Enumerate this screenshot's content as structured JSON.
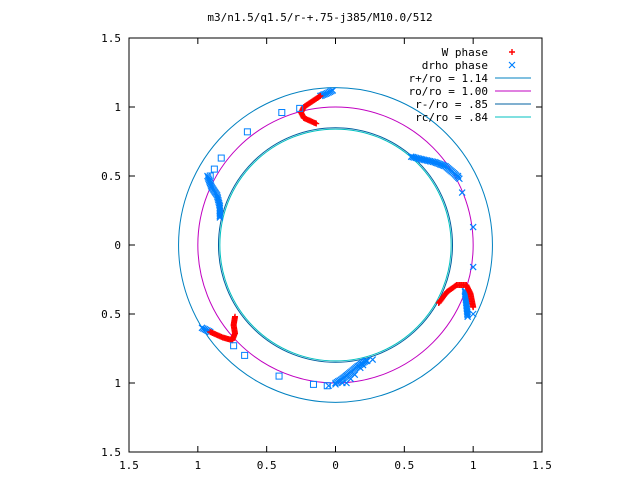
{
  "chart_data": {
    "type": "scatter",
    "title": "m3/n1.5/q1.5/r-+.75-j385/M10.0/512",
    "xlabel": "",
    "ylabel": "",
    "xlim": [
      -1.5,
      1.5
    ],
    "ylim": [
      -1.5,
      1.5
    ],
    "x_tick_labels": [
      "1.5",
      "1",
      "0.5",
      "0",
      "0.5",
      "1",
      "1.5"
    ],
    "y_tick_labels": [
      "1.5",
      "1",
      "0.5",
      "0",
      "0.5",
      "1",
      "1.5"
    ],
    "tick_values": [
      -1.5,
      -1.0,
      -0.5,
      0.0,
      0.5,
      1.0,
      1.5
    ],
    "grid": false,
    "legend_position": "top-right",
    "legend": [
      {
        "label": "W phase",
        "symbol": "+",
        "color": "#ff0000"
      },
      {
        "label": "drho phase",
        "symbol": "x",
        "color": "#0080ff"
      },
      {
        "label": "r+/ro = 1.14",
        "symbol": "line",
        "color": "#0080c0"
      },
      {
        "label": "ro/ro = 1.00",
        "symbol": "line",
        "color": "#c000c0"
      },
      {
        "label": "r-/ro = .85",
        "symbol": "line",
        "color": "#0060a0"
      },
      {
        "label": "rc/ro = .84",
        "symbol": "line",
        "color": "#00c0c0"
      }
    ],
    "circles": [
      {
        "name": "r+/ro = 1.14",
        "radius": 1.14,
        "color": "#0080c0"
      },
      {
        "name": "ro/ro = 1.00",
        "radius": 1.0,
        "color": "#c000c0"
      },
      {
        "name": "r-/ro = .85",
        "radius": 0.85,
        "color": "#0060a0"
      },
      {
        "name": "rc/ro = .84",
        "radius": 0.84,
        "color": "#00c0c0"
      }
    ],
    "series": [
      {
        "name": "W phase",
        "color": "#ff0000",
        "arms": [
          [
            [
              -0.14,
              0.88
            ],
            [
              -0.23,
              0.92
            ],
            [
              -0.25,
              0.96
            ],
            [
              -0.23,
              1.0
            ],
            [
              -0.17,
              1.04
            ],
            [
              -0.11,
              1.08
            ]
          ],
          [
            [
              0.75,
              -0.42
            ],
            [
              0.81,
              -0.34
            ],
            [
              0.88,
              -0.29
            ],
            [
              0.95,
              -0.29
            ],
            [
              0.98,
              -0.35
            ],
            [
              1.0,
              -0.45
            ]
          ],
          [
            [
              -0.73,
              -0.52
            ],
            [
              -0.74,
              -0.58
            ],
            [
              -0.73,
              -0.64
            ],
            [
              -0.75,
              -0.69
            ],
            [
              -0.82,
              -0.67
            ],
            [
              -0.91,
              -0.63
            ]
          ]
        ]
      },
      {
        "name": "drho phase",
        "color": "#0080ff",
        "arms": [
          [
            [
              -0.11,
              1.08
            ],
            [
              -0.06,
              1.1
            ],
            [
              -0.02,
              1.12
            ]
          ],
          [
            [
              0.55,
              0.64
            ],
            [
              0.63,
              0.62
            ],
            [
              0.72,
              0.6
            ],
            [
              0.8,
              0.57
            ],
            [
              0.86,
              0.52
            ],
            [
              0.9,
              0.48
            ]
          ],
          [
            [
              0.94,
              -0.33
            ],
            [
              0.95,
              -0.42
            ],
            [
              0.96,
              -0.52
            ]
          ],
          [
            [
              -0.91,
              -0.63
            ],
            [
              -0.97,
              -0.6
            ]
          ],
          [
            [
              0.0,
              -1.0
            ],
            [
              0.05,
              -0.97
            ],
            [
              0.1,
              -0.93
            ],
            [
              0.16,
              -0.88
            ],
            [
              0.22,
              -0.84
            ]
          ],
          [
            [
              -0.93,
              0.5
            ],
            [
              -0.9,
              0.42
            ],
            [
              -0.86,
              0.36
            ],
            [
              -0.84,
              0.28
            ],
            [
              -0.84,
              0.2
            ]
          ]
        ],
        "points": [
          [
            1.0,
            0.13
          ],
          [
            0.92,
            0.38
          ],
          [
            0.89,
            0.5
          ],
          [
            1.0,
            -0.16
          ],
          [
            1.0,
            -0.5
          ],
          [
            0.27,
            -0.83
          ],
          [
            0.23,
            -0.84
          ],
          [
            0.2,
            -0.87
          ],
          [
            0.18,
            -0.89
          ],
          [
            0.14,
            -0.94
          ],
          [
            0.11,
            -0.97
          ],
          [
            0.08,
            -1.0
          ],
          [
            0.05,
            -1.0
          ],
          [
            0.0,
            -1.01
          ],
          [
            -0.05,
            -1.02
          ]
        ]
      },
      {
        "name": "open markers",
        "color": "#0080ff",
        "points": [
          [
            -0.26,
            0.99
          ],
          [
            -0.39,
            0.96
          ],
          [
            -0.64,
            0.82
          ],
          [
            -0.83,
            0.63
          ],
          [
            -0.88,
            0.55
          ],
          [
            -0.91,
            0.5
          ],
          [
            -0.74,
            -0.73
          ],
          [
            -0.66,
            -0.8
          ],
          [
            -0.41,
            -0.95
          ],
          [
            -0.16,
            -1.01
          ],
          [
            -0.06,
            -1.02
          ]
        ]
      }
    ]
  }
}
